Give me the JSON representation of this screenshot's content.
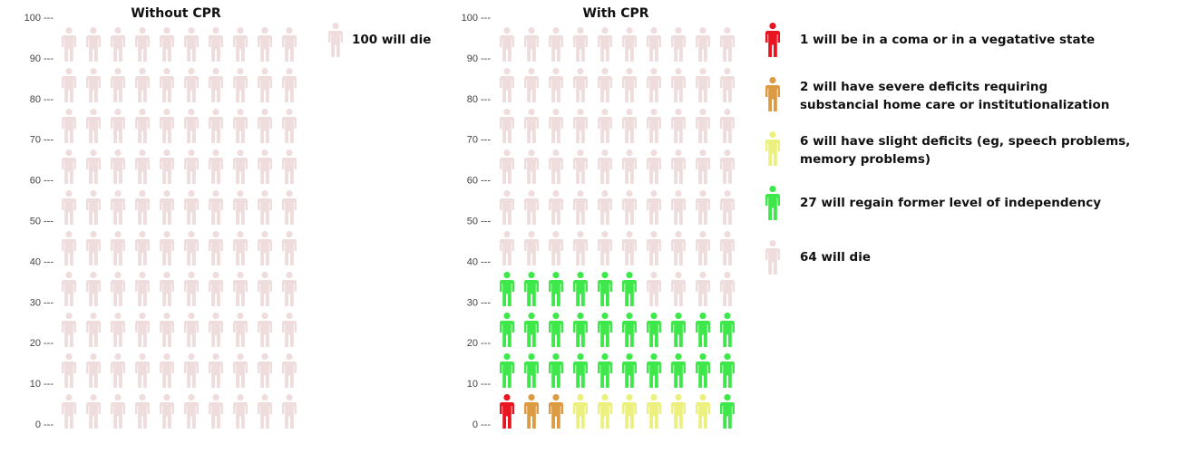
{
  "colors": {
    "coma": "#e8141f",
    "severe": "#dc9a42",
    "slight": "#ecf07e",
    "independent": "#3fe84a",
    "die": "#efdcdc"
  },
  "chart_data": [
    {
      "type": "icon-array",
      "title": "Without CPR",
      "y_ticks": [
        100,
        90,
        80,
        70,
        60,
        50,
        40,
        30,
        20,
        10,
        0
      ],
      "tick_suffix": " ---",
      "columns": 10,
      "total": 100,
      "fill_order": "bottom-up, left-to-right",
      "groups": [
        {
          "key": "die",
          "value": 100,
          "label": "100 will die"
        }
      ]
    },
    {
      "type": "icon-array",
      "title": "With CPR",
      "y_ticks": [
        100,
        90,
        80,
        70,
        60,
        50,
        40,
        30,
        20,
        10,
        0
      ],
      "tick_suffix": " ---",
      "columns": 10,
      "total": 100,
      "fill_order": "bottom-up, left-to-right",
      "groups": [
        {
          "key": "coma",
          "value": 1,
          "label_lines": [
            "1 will be in a coma or in a vegatative state"
          ]
        },
        {
          "key": "severe",
          "value": 2,
          "label_lines": [
            "2 will have severe deficits requiring",
            "substancial home care or institutionalization"
          ]
        },
        {
          "key": "slight",
          "value": 6,
          "label_lines": [
            "6 will have slight deficits (eg, speech problems,",
            "memory problems)"
          ]
        },
        {
          "key": "independent",
          "value": 27,
          "label_lines": [
            "27 will regain former level of independency"
          ]
        },
        {
          "key": "die",
          "value": 64,
          "label_lines": [
            "64 will die"
          ]
        }
      ]
    }
  ]
}
